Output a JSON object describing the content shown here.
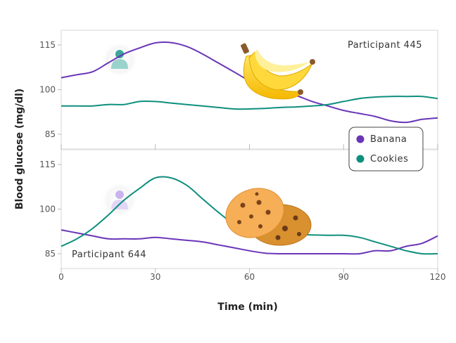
{
  "chart_data": {
    "type": "line",
    "xlabel": "Time (min)",
    "ylabel": "Blood glucose (mg/dl)",
    "xlim": [
      0,
      120
    ],
    "ylim": [
      80,
      120
    ],
    "x_ticks": [
      0,
      30,
      60,
      90,
      120
    ],
    "y_ticks": [
      85,
      100,
      115
    ],
    "colors": {
      "Banana": "#6a35b8",
      "Cookies": "#0e8f7e"
    },
    "legend": [
      "Banana",
      "Cookies"
    ],
    "legend_position": "right",
    "panels": [
      {
        "participant_label": "Participant 445",
        "series": [
          {
            "name": "Banana",
            "x": [
              0,
              5,
              10,
              15,
              20,
              25,
              30,
              35,
              40,
              45,
              50,
              55,
              60,
              65,
              70,
              75,
              80,
              85,
              90,
              95,
              100,
              105,
              110,
              115,
              120
            ],
            "values": [
              104,
              105,
              106,
              109,
              112,
              114,
              115.7,
              115.8,
              114.5,
              112,
              109,
              106,
              103,
              101,
              99.5,
              98,
              96,
              94.5,
              93,
              92,
              91,
              89.5,
              89,
              90,
              90.5
            ]
          },
          {
            "name": "Cookies",
            "x": [
              0,
              5,
              10,
              15,
              20,
              25,
              30,
              35,
              40,
              45,
              50,
              55,
              60,
              65,
              70,
              75,
              80,
              85,
              90,
              95,
              100,
              105,
              110,
              115,
              120
            ],
            "values": [
              94.5,
              94.5,
              94.5,
              95,
              95,
              96,
              96,
              95.5,
              95,
              94.5,
              94,
              93.5,
              93.5,
              93.7,
              94,
              94.2,
              94.5,
              95,
              96,
              97,
              97.5,
              97.7,
              97.7,
              97.7,
              97
            ]
          }
        ]
      },
      {
        "participant_label": "Participant 644",
        "series": [
          {
            "name": "Banana",
            "x": [
              0,
              5,
              10,
              15,
              20,
              25,
              30,
              35,
              40,
              45,
              50,
              55,
              60,
              65,
              70,
              75,
              80,
              85,
              90,
              95,
              100,
              105,
              110,
              115,
              120
            ],
            "values": [
              93,
              92,
              91,
              90,
              90,
              90,
              90.5,
              90,
              89.5,
              89,
              88,
              87,
              86,
              85.2,
              85,
              85,
              85,
              85,
              85,
              85,
              86,
              86,
              87.5,
              88.5,
              91
            ]
          },
          {
            "name": "Cookies",
            "x": [
              0,
              5,
              10,
              15,
              20,
              25,
              30,
              35,
              40,
              45,
              50,
              55,
              60,
              65,
              70,
              75,
              80,
              85,
              90,
              95,
              100,
              105,
              110,
              115,
              120
            ],
            "values": [
              87.5,
              90,
              93.5,
              98,
              103,
              107,
              110.5,
              110.5,
              108,
              103.5,
              99,
              95,
              92.5,
              91.8,
              91.5,
              91.5,
              91.3,
              91.2,
              91.2,
              90.5,
              89,
              87.5,
              86,
              85,
              85
            ]
          }
        ]
      }
    ]
  }
}
